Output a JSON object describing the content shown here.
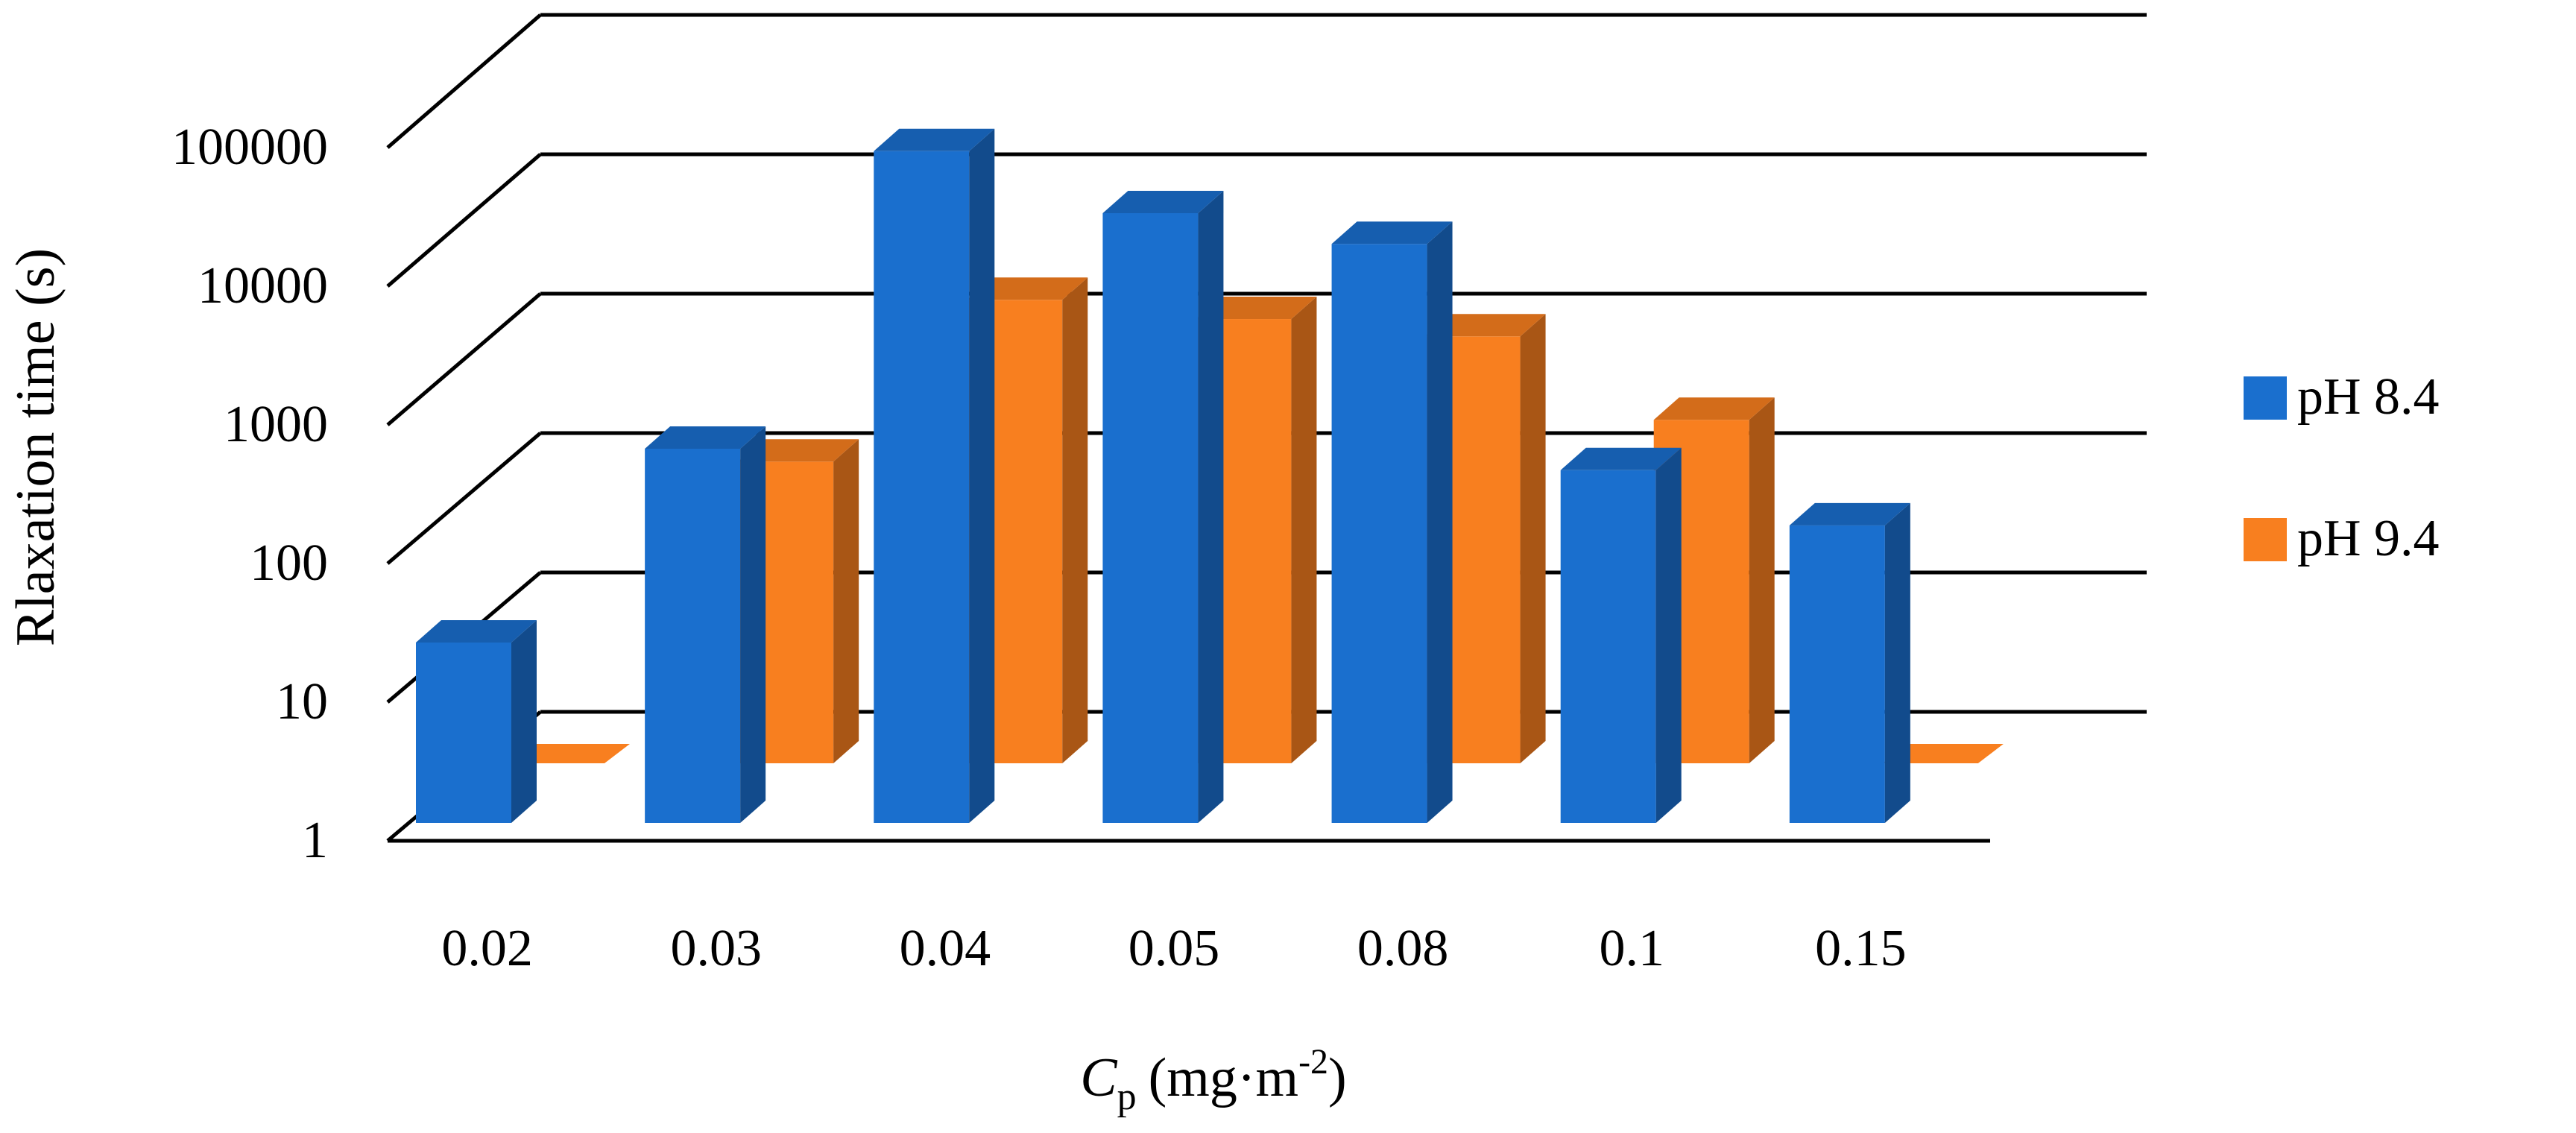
{
  "chart_data": {
    "type": "bar",
    "style": "3d-clustered-column",
    "title": "",
    "xlabel": "Cp (mg·m-2)",
    "xlabel_parts": {
      "symbol": "C",
      "subscript": "p",
      "unit_open": "(mg·m",
      "superscript": "-2",
      "unit_close": ")"
    },
    "ylabel": "Rlaxation time (s)",
    "yscale": "log",
    "ylim": [
      1,
      100000
    ],
    "yticks": [
      "1",
      "10",
      "100",
      "1000",
      "10000",
      "100000"
    ],
    "categories": [
      "0.02",
      "0.03",
      "0.04",
      "0.05",
      "0.08",
      "0.1",
      "0.15"
    ],
    "series": [
      {
        "name": "pH 8.4",
        "color": "#1a6fce",
        "values": [
          20,
          500,
          70000,
          25000,
          15000,
          350,
          140
        ]
      },
      {
        "name": "pH 9.4",
        "color": "#f87f1f",
        "values": [
          1,
          150,
          2200,
          1600,
          1200,
          300,
          1
        ]
      }
    ],
    "legend_position": "right"
  }
}
